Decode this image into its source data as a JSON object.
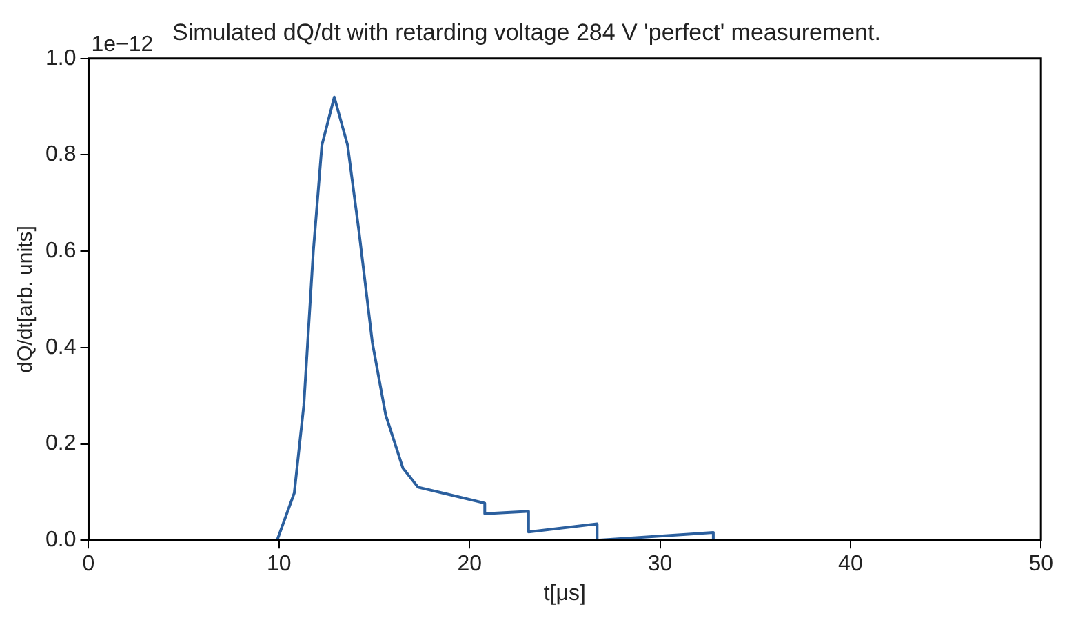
{
  "chart_data": {
    "type": "line",
    "title": "Simulated dQ/dt with retarding voltage 284 V 'perfect' measurement.",
    "xlabel": "t[μs]",
    "ylabel": "dQ/dt[arb. units]",
    "annotations": [
      "1e−12"
    ],
    "x": [
      0,
      9.9,
      10.8,
      11.3,
      11.8,
      12.25,
      12.9,
      13.6,
      14.2,
      14.9,
      15.6,
      16.5,
      17.3,
      18.7,
      20.8,
      20.8,
      23.1,
      23.1,
      26.7,
      26.7,
      32.8,
      32.8,
      46.4
    ],
    "series": [
      {
        "color": "#2b5f9e",
        "values": [
          0,
          0,
          0.098,
          0.28,
          0.6,
          0.82,
          0.92,
          0.82,
          0.64,
          0.41,
          0.26,
          0.15,
          0.11,
          0.097,
          0.077,
          0.055,
          0.06,
          0.017,
          0.034,
          0,
          0.016,
          0,
          0
        ]
      }
    ],
    "xlim": [
      0,
      50
    ],
    "xticks": [
      0,
      10,
      20,
      30,
      40,
      50
    ],
    "ylim": [
      0,
      1
    ],
    "yticks": [
      {
        "value": 0,
        "label": "0.0"
      },
      {
        "value": 0.2,
        "label": "0.2"
      },
      {
        "value": 0.4,
        "label": "0.4"
      },
      {
        "value": 0.6,
        "label": "0.6"
      },
      {
        "value": 0.8,
        "label": "0.8"
      },
      {
        "value": 1,
        "label": "1.0"
      }
    ],
    "grid": false,
    "legend": false,
    "marker": "none",
    "line_style": "solid"
  }
}
